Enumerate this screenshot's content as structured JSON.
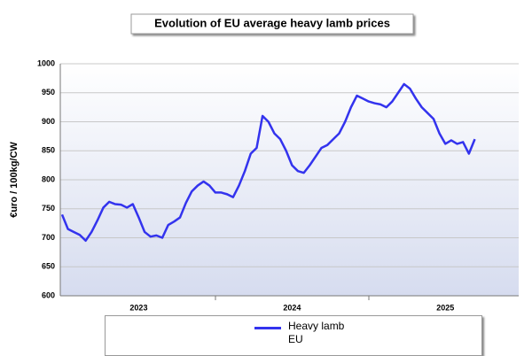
{
  "chart_data": {
    "type": "line",
    "title": "Evolution of EU average heavy lamb prices",
    "ylabel": "€uro / 100kg/CW",
    "categories": [
      null,
      null,
      null,
      null,
      null,
      null,
      null,
      null,
      null,
      null,
      null,
      null,
      null,
      "2023",
      null,
      null,
      null,
      null,
      null,
      null,
      null,
      null,
      null,
      null,
      null,
      null,
      null,
      null,
      null,
      null,
      null,
      null,
      null,
      null,
      null,
      null,
      null,
      null,
      null,
      "2024",
      null,
      null,
      null,
      null,
      null,
      null,
      null,
      null,
      null,
      null,
      null,
      null,
      null,
      null,
      null,
      null,
      null,
      null,
      null,
      null,
      null,
      null,
      null,
      null,
      null,
      "2025",
      null,
      null,
      null,
      null,
      null
    ],
    "series": [
      {
        "name": "Heavy lamb EU",
        "color": "#3333ee",
        "values": [
          740,
          715,
          710,
          705,
          695,
          710,
          730,
          752,
          762,
          758,
          757,
          752,
          758,
          735,
          710,
          702,
          704,
          700,
          722,
          728,
          735,
          760,
          780,
          790,
          797,
          790,
          778,
          778,
          775,
          770,
          790,
          815,
          845,
          855,
          910,
          900,
          880,
          870,
          850,
          825,
          815,
          812,
          825,
          840,
          855,
          860,
          870,
          880,
          900,
          925,
          945,
          940,
          935,
          932,
          930,
          925,
          935,
          950,
          965,
          957,
          940,
          925,
          915,
          905,
          880,
          862,
          868,
          862,
          865,
          845,
          870
        ]
      }
    ],
    "ylim": [
      600,
      1000
    ],
    "yticks": [
      600,
      650,
      700,
      750,
      800,
      850,
      900,
      950,
      1000
    ],
    "grid": true
  }
}
